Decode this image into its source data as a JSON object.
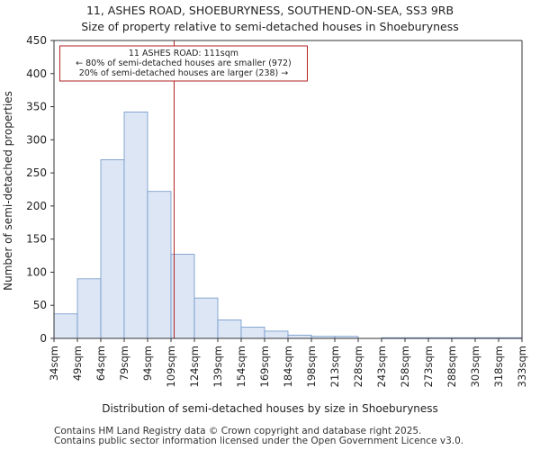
{
  "chart_data": {
    "type": "bar",
    "title": "11, ASHES ROAD, SHOEBURYNESS, SOUTHEND-ON-SEA, SS3 9RB",
    "subtitle": "Size of property relative to semi-detached houses in Shoeburyness",
    "xlabel": "Distribution of semi-detached houses by size in Shoeburyness",
    "ylabel": "Number of semi-detached properties",
    "ylim": [
      0,
      450
    ],
    "yticks": [
      0,
      50,
      100,
      150,
      200,
      250,
      300,
      350,
      400,
      450
    ],
    "categories": [
      "34sqm",
      "49sqm",
      "64sqm",
      "79sqm",
      "94sqm",
      "109sqm",
      "124sqm",
      "139sqm",
      "154sqm",
      "169sqm",
      "184sqm",
      "198sqm",
      "213sqm",
      "228sqm",
      "243sqm",
      "258sqm",
      "273sqm",
      "288sqm",
      "303sqm",
      "318sqm",
      "333sqm"
    ],
    "values": [
      37,
      90,
      270,
      342,
      222,
      127,
      61,
      28,
      17,
      11,
      5,
      3,
      3,
      0,
      1,
      1,
      1,
      1,
      1,
      1,
      0
    ],
    "bar_color": "#dce6f5",
    "bar_edge": "#6f95c8",
    "marker": {
      "value_sqm": 111,
      "color": "#b22222",
      "lines": [
        "11 ASHES ROAD: 111sqm",
        "← 80% of semi-detached houses are smaller (972)",
        "20% of semi-detached houses are larger (238) →"
      ]
    },
    "grid": false
  },
  "footer": {
    "line1": "Contains HM Land Registry data © Crown copyright and database right 2025.",
    "line2": "Contains public sector information licensed under the Open Government Licence v3.0."
  }
}
